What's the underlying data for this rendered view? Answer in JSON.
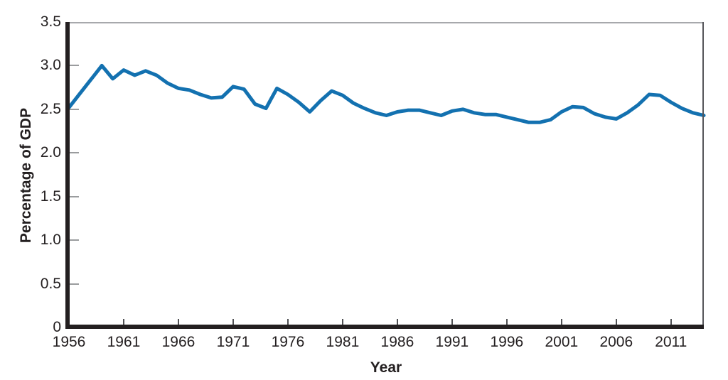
{
  "chart_data": {
    "type": "line",
    "xlabel": "Year",
    "ylabel": "Percentage of GDP",
    "x_range": [
      1956,
      2014
    ],
    "ylim": [
      0,
      3.5
    ],
    "grid": "top border line only",
    "legend": "none",
    "x": [
      1956,
      1957,
      1958,
      1959,
      1960,
      1961,
      1962,
      1963,
      1964,
      1965,
      1966,
      1967,
      1968,
      1969,
      1970,
      1971,
      1972,
      1973,
      1974,
      1975,
      1976,
      1977,
      1978,
      1979,
      1980,
      1981,
      1982,
      1983,
      1984,
      1985,
      1986,
      1987,
      1988,
      1989,
      1990,
      1991,
      1992,
      1993,
      1994,
      1995,
      1996,
      1997,
      1998,
      1999,
      2000,
      2001,
      2002,
      2003,
      2004,
      2005,
      2006,
      2007,
      2008,
      2009,
      2010,
      2011,
      2012,
      2013,
      2014
    ],
    "values": [
      2.52,
      2.68,
      2.84,
      3.0,
      2.85,
      2.95,
      2.89,
      2.94,
      2.89,
      2.8,
      2.74,
      2.72,
      2.67,
      2.63,
      2.64,
      2.76,
      2.73,
      2.56,
      2.51,
      2.74,
      2.67,
      2.58,
      2.47,
      2.6,
      2.71,
      2.66,
      2.57,
      2.51,
      2.46,
      2.43,
      2.47,
      2.49,
      2.49,
      2.46,
      2.43,
      2.48,
      2.5,
      2.46,
      2.44,
      2.44,
      2.41,
      2.38,
      2.35,
      2.35,
      2.38,
      2.47,
      2.53,
      2.52,
      2.45,
      2.41,
      2.39,
      2.46,
      2.55,
      2.67,
      2.66,
      2.58,
      2.51,
      2.46,
      2.43
    ],
    "yticks": [
      {
        "label": "3.5",
        "value": 3.5
      },
      {
        "label": "3.0",
        "value": 3.0
      },
      {
        "label": "2.5",
        "value": 2.5
      },
      {
        "label": "2.0",
        "value": 2.0
      },
      {
        "label": "1.5",
        "value": 1.5
      },
      {
        "label": "1.0",
        "value": 1.0
      },
      {
        "label": "0.5",
        "value": 0.5
      },
      {
        "label": "0",
        "value": 0
      }
    ],
    "xticks": [
      {
        "label": "1956",
        "year": 1956
      },
      {
        "label": "1961",
        "year": 1961
      },
      {
        "label": "1966",
        "year": 1966
      },
      {
        "label": "1971",
        "year": 1971
      },
      {
        "label": "1976",
        "year": 1976
      },
      {
        "label": "1981",
        "year": 1981
      },
      {
        "label": "1986",
        "year": 1986
      },
      {
        "label": "1991",
        "year": 1991
      },
      {
        "label": "1996",
        "year": 1996
      },
      {
        "label": "2001",
        "year": 2001
      },
      {
        "label": "2006",
        "year": 2006
      },
      {
        "label": "2011",
        "year": 2011
      }
    ],
    "colors": {
      "line": "#1371b0",
      "axis": "#231f20",
      "top_border": "#a7a9ac",
      "right_border": "#55565a",
      "y_tick": "#9a9c9e",
      "x_tick": "#505154",
      "text": "#231f20"
    }
  }
}
